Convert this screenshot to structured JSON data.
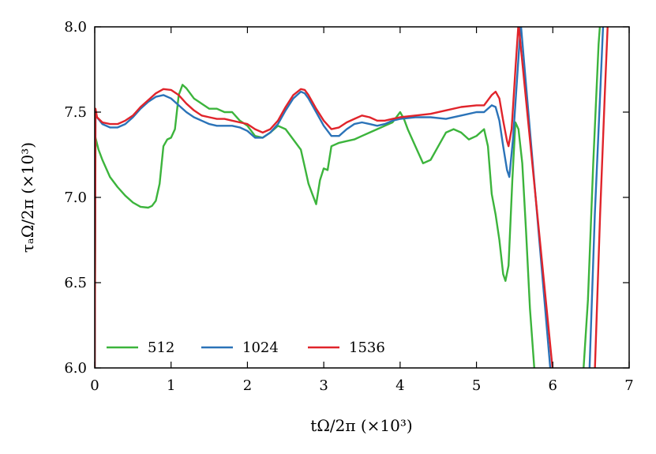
{
  "chart_data": {
    "type": "line",
    "xlabel": "tΩ/2π (×10³)",
    "ylabel": "τₐΩ/2π (×10³)",
    "xlim": [
      0,
      7
    ],
    "ylim": [
      6.0,
      8.0
    ],
    "xticks": [
      0,
      1,
      2,
      3,
      4,
      5,
      6,
      7
    ],
    "yticks": [
      6.0,
      6.5,
      7.0,
      7.5,
      8.0
    ],
    "xtick_labels": [
      "0",
      "1",
      "2",
      "3",
      "4",
      "5",
      "6",
      "7"
    ],
    "ytick_labels": [
      "6.0",
      "6.5",
      "7.0",
      "7.5",
      "8.0"
    ],
    "grid": false,
    "legend_position": "bottom-left",
    "series": [
      {
        "name": "512",
        "color": "#3cb43c",
        "points": [
          [
            0.0,
            6.0
          ],
          [
            0.01,
            7.35
          ],
          [
            0.05,
            7.28
          ],
          [
            0.1,
            7.22
          ],
          [
            0.2,
            7.12
          ],
          [
            0.3,
            7.06
          ],
          [
            0.4,
            7.01
          ],
          [
            0.5,
            6.97
          ],
          [
            0.6,
            6.945
          ],
          [
            0.7,
            6.94
          ],
          [
            0.75,
            6.95
          ],
          [
            0.8,
            6.98
          ],
          [
            0.85,
            7.08
          ],
          [
            0.9,
            7.3
          ],
          [
            0.95,
            7.34
          ],
          [
            1.0,
            7.35
          ],
          [
            1.05,
            7.4
          ],
          [
            1.1,
            7.6
          ],
          [
            1.15,
            7.66
          ],
          [
            1.2,
            7.64
          ],
          [
            1.3,
            7.58
          ],
          [
            1.4,
            7.55
          ],
          [
            1.5,
            7.52
          ],
          [
            1.6,
            7.52
          ],
          [
            1.7,
            7.5
          ],
          [
            1.8,
            7.5
          ],
          [
            1.9,
            7.45
          ],
          [
            2.0,
            7.42
          ],
          [
            2.1,
            7.36
          ],
          [
            2.2,
            7.35
          ],
          [
            2.3,
            7.38
          ],
          [
            2.4,
            7.42
          ],
          [
            2.5,
            7.4
          ],
          [
            2.6,
            7.34
          ],
          [
            2.7,
            7.28
          ],
          [
            2.75,
            7.18
          ],
          [
            2.8,
            7.08
          ],
          [
            2.85,
            7.02
          ],
          [
            2.9,
            6.96
          ],
          [
            2.95,
            7.1
          ],
          [
            3.0,
            7.17
          ],
          [
            3.05,
            7.16
          ],
          [
            3.1,
            7.3
          ],
          [
            3.2,
            7.32
          ],
          [
            3.3,
            7.33
          ],
          [
            3.4,
            7.34
          ],
          [
            3.5,
            7.36
          ],
          [
            3.6,
            7.38
          ],
          [
            3.7,
            7.4
          ],
          [
            3.8,
            7.42
          ],
          [
            3.9,
            7.44
          ],
          [
            4.0,
            7.5
          ],
          [
            4.05,
            7.46
          ],
          [
            4.1,
            7.4
          ],
          [
            4.2,
            7.3
          ],
          [
            4.3,
            7.2
          ],
          [
            4.4,
            7.22
          ],
          [
            4.5,
            7.3
          ],
          [
            4.6,
            7.38
          ],
          [
            4.7,
            7.4
          ],
          [
            4.8,
            7.38
          ],
          [
            4.9,
            7.34
          ],
          [
            5.0,
            7.36
          ],
          [
            5.1,
            7.4
          ],
          [
            5.15,
            7.3
          ],
          [
            5.2,
            7.02
          ],
          [
            5.25,
            6.9
          ],
          [
            5.3,
            6.75
          ],
          [
            5.35,
            6.55
          ],
          [
            5.38,
            6.51
          ],
          [
            5.42,
            6.6
          ],
          [
            5.47,
            7.1
          ],
          [
            5.51,
            7.44
          ],
          [
            5.55,
            7.4
          ],
          [
            5.6,
            7.2
          ],
          [
            5.65,
            6.8
          ],
          [
            5.7,
            6.35
          ],
          [
            5.76,
            5.98
          ],
          [
            6.4,
            5.98
          ],
          [
            6.46,
            6.4
          ],
          [
            6.53,
            7.2
          ],
          [
            6.6,
            7.9
          ],
          [
            6.62,
            8.02
          ]
        ]
      },
      {
        "name": "1024",
        "color": "#2b73b8",
        "points": [
          [
            0.0,
            6.0
          ],
          [
            0.01,
            7.5
          ],
          [
            0.03,
            7.47
          ],
          [
            0.1,
            7.43
          ],
          [
            0.2,
            7.41
          ],
          [
            0.3,
            7.41
          ],
          [
            0.4,
            7.43
          ],
          [
            0.5,
            7.47
          ],
          [
            0.6,
            7.52
          ],
          [
            0.7,
            7.56
          ],
          [
            0.8,
            7.59
          ],
          [
            0.9,
            7.6
          ],
          [
            1.0,
            7.58
          ],
          [
            1.1,
            7.54
          ],
          [
            1.2,
            7.5
          ],
          [
            1.3,
            7.47
          ],
          [
            1.4,
            7.45
          ],
          [
            1.5,
            7.43
          ],
          [
            1.6,
            7.42
          ],
          [
            1.7,
            7.42
          ],
          [
            1.8,
            7.42
          ],
          [
            1.9,
            7.41
          ],
          [
            2.0,
            7.39
          ],
          [
            2.1,
            7.35
          ],
          [
            2.2,
            7.35
          ],
          [
            2.3,
            7.38
          ],
          [
            2.4,
            7.43
          ],
          [
            2.5,
            7.51
          ],
          [
            2.6,
            7.58
          ],
          [
            2.7,
            7.62
          ],
          [
            2.75,
            7.61
          ],
          [
            2.8,
            7.58
          ],
          [
            2.9,
            7.5
          ],
          [
            3.0,
            7.42
          ],
          [
            3.1,
            7.36
          ],
          [
            3.2,
            7.36
          ],
          [
            3.3,
            7.4
          ],
          [
            3.4,
            7.43
          ],
          [
            3.5,
            7.44
          ],
          [
            3.6,
            7.43
          ],
          [
            3.7,
            7.42
          ],
          [
            3.8,
            7.43
          ],
          [
            3.9,
            7.45
          ],
          [
            4.0,
            7.46
          ],
          [
            4.2,
            7.47
          ],
          [
            4.4,
            7.47
          ],
          [
            4.6,
            7.46
          ],
          [
            4.8,
            7.48
          ],
          [
            5.0,
            7.5
          ],
          [
            5.1,
            7.5
          ],
          [
            5.2,
            7.54
          ],
          [
            5.25,
            7.53
          ],
          [
            5.3,
            7.45
          ],
          [
            5.35,
            7.3
          ],
          [
            5.4,
            7.16
          ],
          [
            5.43,
            7.12
          ],
          [
            5.48,
            7.35
          ],
          [
            5.54,
            7.75
          ],
          [
            5.58,
            8.02
          ],
          [
            5.97,
            5.98
          ],
          [
            6.48,
            5.98
          ],
          [
            6.55,
            6.9
          ],
          [
            6.62,
            7.6
          ],
          [
            6.66,
            8.02
          ]
        ]
      },
      {
        "name": "1536",
        "color": "#e0242b",
        "points": [
          [
            0.0,
            6.0
          ],
          [
            0.01,
            7.52
          ],
          [
            0.03,
            7.47
          ],
          [
            0.1,
            7.44
          ],
          [
            0.2,
            7.43
          ],
          [
            0.3,
            7.43
          ],
          [
            0.4,
            7.45
          ],
          [
            0.5,
            7.48
          ],
          [
            0.6,
            7.53
          ],
          [
            0.7,
            7.57
          ],
          [
            0.8,
            7.61
          ],
          [
            0.9,
            7.635
          ],
          [
            1.0,
            7.63
          ],
          [
            1.1,
            7.6
          ],
          [
            1.2,
            7.55
          ],
          [
            1.3,
            7.51
          ],
          [
            1.4,
            7.48
          ],
          [
            1.5,
            7.47
          ],
          [
            1.6,
            7.46
          ],
          [
            1.7,
            7.46
          ],
          [
            1.8,
            7.45
          ],
          [
            1.9,
            7.44
          ],
          [
            2.0,
            7.43
          ],
          [
            2.1,
            7.4
          ],
          [
            2.2,
            7.38
          ],
          [
            2.3,
            7.4
          ],
          [
            2.4,
            7.45
          ],
          [
            2.5,
            7.53
          ],
          [
            2.6,
            7.6
          ],
          [
            2.7,
            7.635
          ],
          [
            2.75,
            7.63
          ],
          [
            2.8,
            7.6
          ],
          [
            2.9,
            7.52
          ],
          [
            3.0,
            7.45
          ],
          [
            3.1,
            7.4
          ],
          [
            3.2,
            7.41
          ],
          [
            3.3,
            7.44
          ],
          [
            3.4,
            7.46
          ],
          [
            3.5,
            7.48
          ],
          [
            3.6,
            7.47
          ],
          [
            3.7,
            7.45
          ],
          [
            3.8,
            7.45
          ],
          [
            3.9,
            7.46
          ],
          [
            4.0,
            7.47
          ],
          [
            4.2,
            7.48
          ],
          [
            4.4,
            7.49
          ],
          [
            4.6,
            7.51
          ],
          [
            4.8,
            7.53
          ],
          [
            5.0,
            7.54
          ],
          [
            5.1,
            7.54
          ],
          [
            5.2,
            7.6
          ],
          [
            5.25,
            7.62
          ],
          [
            5.3,
            7.58
          ],
          [
            5.35,
            7.45
          ],
          [
            5.4,
            7.33
          ],
          [
            5.42,
            7.3
          ],
          [
            5.46,
            7.4
          ],
          [
            5.51,
            7.75
          ],
          [
            5.55,
            8.02
          ],
          [
            6.0,
            5.98
          ],
          [
            6.55,
            5.98
          ],
          [
            6.62,
            6.9
          ],
          [
            6.68,
            7.6
          ],
          [
            6.72,
            8.02
          ]
        ]
      }
    ]
  }
}
